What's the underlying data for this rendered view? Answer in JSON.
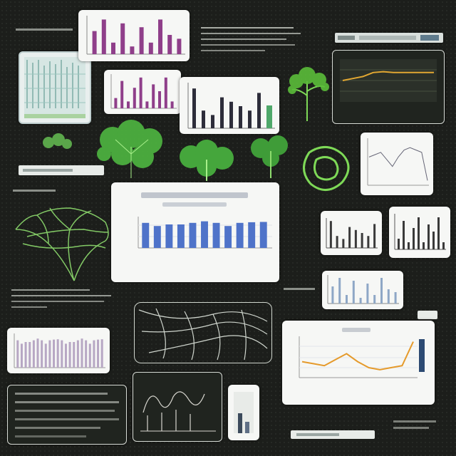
{
  "colors": {
    "background": "#1c1e1b",
    "plant_green": "#7ed957",
    "bar_blue": "#4f73c9",
    "bar_purple": "#8f3f8a",
    "line_orange": "#e59a2b",
    "dark_bar": "#2d2d3a",
    "teal_frame": "#bfcfcf"
  },
  "icons": [
    "plant-illustration",
    "fern-icon",
    "tree-diagram-illustration",
    "network-diagram-illustration"
  ],
  "chart_data": [
    {
      "type": "bar",
      "values": [
        8,
        7,
        7.5,
        7.5,
        8,
        8.5,
        8,
        7,
        8,
        8.2,
        8.3
      ],
      "ylim": [
        0,
        10
      ]
    },
    {
      "type": "line",
      "values": [
        4,
        3.5,
        3,
        4.5,
        6,
        4,
        2.5,
        2,
        2.5,
        3,
        9
      ]
    },
    {
      "type": "line",
      "values": [
        5,
        5.5,
        6,
        7,
        7.2,
        7,
        7,
        7,
        7,
        7
      ]
    },
    {
      "type": "bar",
      "values": [
        6,
        9,
        3,
        8,
        2,
        7,
        3,
        9,
        5,
        4
      ]
    },
    {
      "type": "bar",
      "values": [
        3,
        8,
        2,
        6,
        9,
        2,
        7,
        5,
        9,
        2
      ]
    },
    {
      "type": "bar",
      "values": [
        9,
        4,
        3,
        7,
        6,
        5,
        4,
        8
      ]
    }
  ]
}
